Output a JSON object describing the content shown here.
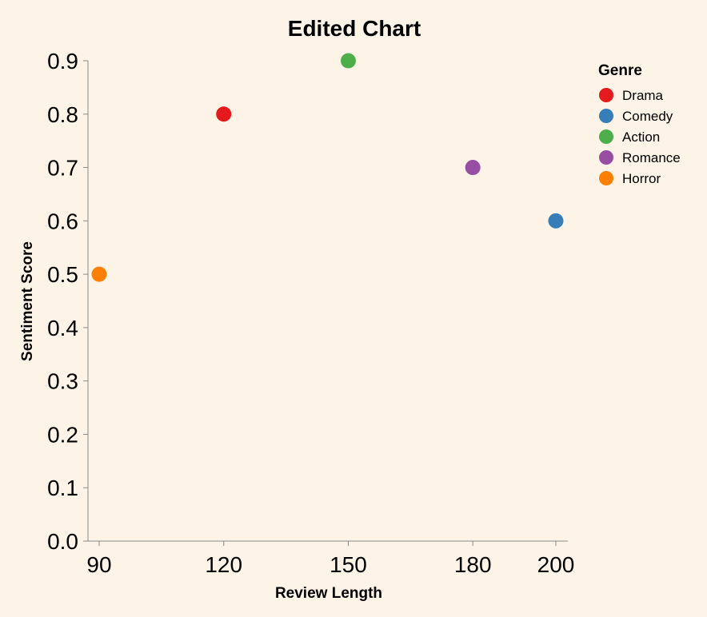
{
  "chart_data": {
    "type": "scatter",
    "title": "Edited Chart",
    "xlabel": "Review Length",
    "ylabel": "Sentiment Score",
    "x_ticks": [
      90,
      120,
      150,
      180,
      200
    ],
    "y_ticks": [
      "0.0",
      "0.1",
      "0.2",
      "0.3",
      "0.4",
      "0.5",
      "0.6",
      "0.7",
      "0.8",
      "0.9"
    ],
    "xlim": [
      87,
      203
    ],
    "ylim": [
      0,
      0.9
    ],
    "grid": false,
    "legend_title": "Genre",
    "legend_position": "top-right",
    "series": [
      {
        "name": "Drama",
        "color": "#e41a1c",
        "x": [
          120
        ],
        "y": [
          0.8
        ]
      },
      {
        "name": "Comedy",
        "color": "#377eb8",
        "x": [
          200
        ],
        "y": [
          0.6
        ]
      },
      {
        "name": "Action",
        "color": "#4daf4a",
        "x": [
          150
        ],
        "y": [
          0.9
        ]
      },
      {
        "name": "Romance",
        "color": "#984ea3",
        "x": [
          180
        ],
        "y": [
          0.7
        ]
      },
      {
        "name": "Horror",
        "color": "#ff7f00",
        "x": [
          90
        ],
        "y": [
          0.5
        ]
      }
    ]
  },
  "colors": {
    "background": "#fdf3e7",
    "axis": "#888888"
  }
}
